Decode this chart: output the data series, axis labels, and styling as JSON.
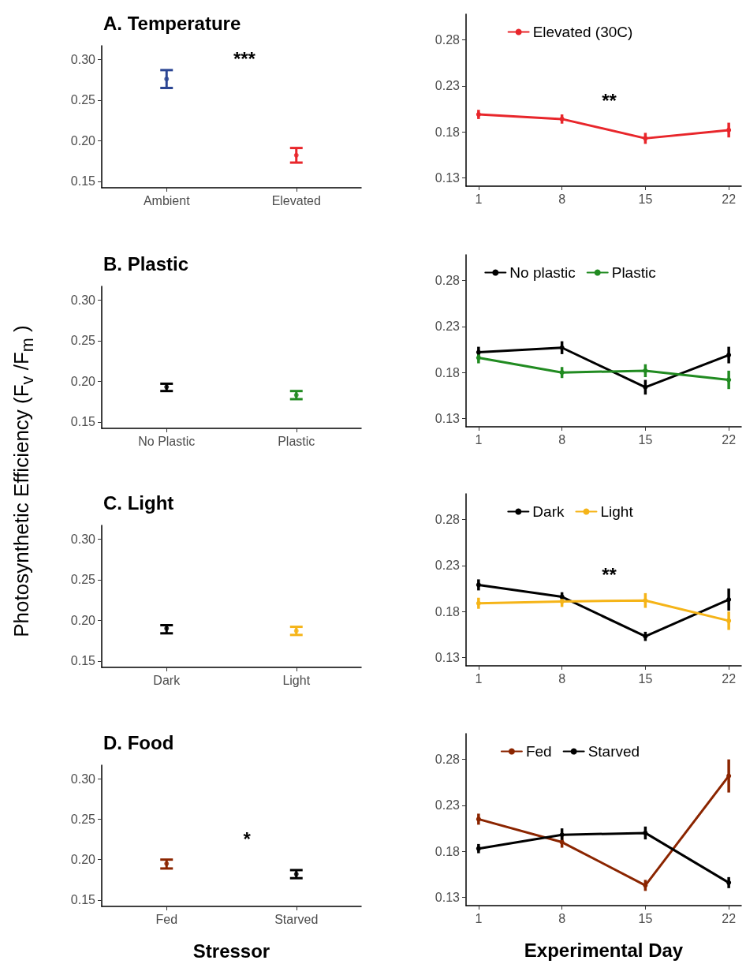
{
  "chart_data": [
    {
      "type": "scatter",
      "title": "A. Temperature",
      "categories": [
        "Ambient",
        "Elevated"
      ],
      "values": [
        0.276,
        0.182
      ],
      "colors": [
        "#2b4593",
        "#e8262b"
      ],
      "errors": [
        [
          0.265,
          0.287
        ],
        [
          0.173,
          0.191
        ]
      ],
      "ylim": [
        0.142,
        0.317
      ],
      "yticks": [
        0.15,
        {
          "value": 0.25,
          "label": "0.25"
        },
        {
          "value": 0.2,
          "label": "0.20"
        },
        {
          "value": 0.3,
          "label": "0.30"
        }
      ],
      "marker": "circle",
      "annotations": [
        "***",
        "Photosynthetic Efficiency (F$_{v}$ /F$_{m}$ )"
      ]
    },
    {
      "type": "line",
      "x": [
        1,
        8,
        15,
        22
      ],
      "series": [
        {
          "name": "Elevated (30C)",
          "color": "#e8262b",
          "values": [
            0.199,
            0.194,
            0.173,
            0.182
          ],
          "errors": [
            0.005,
            0.005,
            0.006,
            0.008
          ]
        }
      ],
      "xlim": [
        -0.05,
        23.05
      ],
      "xticks": [
        1,
        8,
        15,
        22
      ],
      "ylim": [
        0.121,
        0.308
      ],
      "yticks": [
        0.13,
        0.18,
        0.23,
        0.28
      ],
      "marker": "circle",
      "line_style": "solid",
      "legend": "top",
      "annotations": [
        "**"
      ]
    },
    {
      "type": "scatter",
      "title": "B. Plastic",
      "categories": [
        "No Plastic",
        "Plastic"
      ],
      "values": [
        0.193,
        0.183
      ],
      "colors": [
        "#000000",
        "#218b21"
      ],
      "errors": [
        [
          0.188,
          0.197
        ],
        [
          0.178,
          0.188
        ]
      ],
      "ylim": [
        0.142,
        0.317
      ],
      "yticks": [
        0.15,
        {
          "value": 0.25,
          "label": "0.25"
        },
        {
          "value": 0.2,
          "label": "0.20"
        },
        {
          "value": 0.3,
          "label": "0.30"
        }
      ],
      "marker": "circle"
    },
    {
      "type": "line",
      "x": [
        1,
        8,
        15,
        22
      ],
      "series": [
        {
          "name": "No plastic",
          "color": "#000000",
          "values": [
            0.202,
            0.207,
            0.164,
            0.199
          ],
          "errors": [
            0.006,
            0.007,
            0.008,
            0.009
          ]
        },
        {
          "name": "Plastic",
          "color": "#218b21",
          "values": [
            0.196,
            0.18,
            0.182,
            0.172
          ],
          "errors": [
            0.006,
            0.006,
            0.007,
            0.01
          ]
        }
      ],
      "xlim": [
        -0.05,
        23.05
      ],
      "xticks": [
        1,
        8,
        15,
        22
      ],
      "ylim": [
        0.121,
        0.308
      ],
      "yticks": [
        0.13,
        0.18,
        0.23,
        0.28
      ],
      "marker": "circle",
      "line_style": "solid",
      "legend": "top"
    },
    {
      "type": "scatter",
      "title": "C. Light",
      "categories": [
        "Dark",
        "Light"
      ],
      "values": [
        0.19,
        0.187
      ],
      "colors": [
        "#000000",
        "#f5b418"
      ],
      "errors": [
        [
          0.184,
          0.194
        ],
        [
          0.182,
          0.192
        ]
      ],
      "ylim": [
        0.142,
        0.317
      ],
      "yticks": [
        0.15,
        {
          "value": 0.25,
          "label": "0.25"
        },
        {
          "value": 0.2,
          "label": "0.20"
        },
        {
          "value": 0.3,
          "label": "0.30"
        }
      ],
      "marker": "circle"
    },
    {
      "type": "line",
      "x": [
        1,
        8,
        15,
        22
      ],
      "series": [
        {
          "name": "Dark",
          "color": "#000000",
          "values": [
            0.209,
            0.196,
            0.153,
            0.193
          ],
          "errors": [
            0.006,
            0.005,
            0.005,
            0.012
          ]
        },
        {
          "name": "Light",
          "color": "#f5b418",
          "values": [
            0.189,
            0.191,
            0.192,
            0.17
          ],
          "errors": [
            0.006,
            0.006,
            0.008,
            0.01
          ]
        }
      ],
      "xlim": [
        -0.05,
        23.05
      ],
      "xticks": [
        1,
        8,
        15,
        22
      ],
      "ylim": [
        0.121,
        0.308
      ],
      "yticks": [
        0.13,
        0.18,
        0.23,
        0.28
      ],
      "marker": "circle",
      "line_style": "solid",
      "legend": "top",
      "annotations": [
        "**"
      ]
    },
    {
      "type": "scatter",
      "title": "D. Food",
      "xlabel": "Stressor",
      "categories": [
        "Fed",
        "Starved"
      ],
      "values": [
        0.195,
        0.182
      ],
      "colors": [
        "#8b2500",
        "#000000"
      ],
      "errors": [
        [
          0.189,
          0.2
        ],
        [
          0.177,
          0.187
        ]
      ],
      "ylim": [
        0.142,
        0.317
      ],
      "yticks": [
        0.15,
        {
          "value": 0.25,
          "label": "0.25"
        },
        {
          "value": 0.2,
          "label": "0.20"
        },
        {
          "value": 0.3,
          "label": "0.30"
        }
      ],
      "marker": "circle",
      "annotations": [
        "*"
      ]
    },
    {
      "type": "line",
      "xlabel": "Experimental Day",
      "x": [
        1,
        8,
        15,
        22
      ],
      "series": [
        {
          "name": "Fed",
          "color": "#8b2500",
          "values": [
            0.215,
            0.19,
            0.143,
            0.262
          ],
          "errors": [
            0.006,
            0.006,
            0.006,
            0.018
          ]
        },
        {
          "name": "Starved",
          "color": "#000000",
          "values": [
            0.183,
            0.198,
            0.2,
            0.146
          ],
          "errors": [
            0.005,
            0.007,
            0.007,
            0.006
          ]
        }
      ],
      "xlim": [
        -0.05,
        23.05
      ],
      "xticks": [
        1,
        8,
        15,
        22
      ],
      "ylim": [
        0.121,
        0.308
      ],
      "yticks": [
        0.13,
        0.18,
        0.23,
        0.28
      ],
      "marker": "circle",
      "line_style": "solid",
      "legend": "top"
    }
  ]
}
